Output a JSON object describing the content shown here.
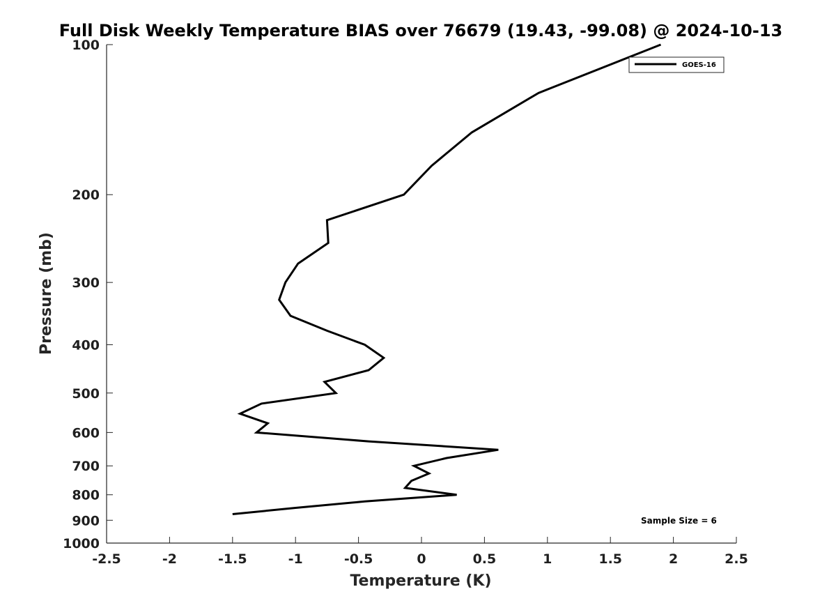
{
  "chart_data": {
    "type": "line",
    "title": "Full Disk Weekly Temperature BIAS over 76679 (19.43, -99.08) @ 2024-10-13",
    "xlabel": "Temperature (K)",
    "ylabel": "Pressure (mb)",
    "xlim": [
      -2.5,
      2.5
    ],
    "ylim": [
      100,
      1000
    ],
    "y_scale": "log",
    "y_reversed": true,
    "grid": false,
    "legend_position": "top-right",
    "x_ticks": [
      -2.5,
      -2,
      -1.5,
      -1,
      -0.5,
      0,
      0.5,
      1,
      1.5,
      2,
      2.5
    ],
    "x_tick_labels": [
      "-2.5",
      "-2",
      "-1.5",
      "-1",
      "-0.5",
      "0",
      "0.5",
      "1",
      "1.5",
      "2",
      "2.5"
    ],
    "y_ticks": [
      100,
      200,
      300,
      400,
      500,
      600,
      700,
      800,
      900,
      1000
    ],
    "y_tick_labels": [
      "100",
      "200",
      "300",
      "400",
      "500",
      "600",
      "700",
      "800",
      "900",
      "1000"
    ],
    "series": [
      {
        "name": "GOES-16",
        "color": "#000000",
        "points": [
          [
            1.9,
            100
          ],
          [
            0.93,
            125
          ],
          [
            0.4,
            150
          ],
          [
            0.08,
            175
          ],
          [
            -0.14,
            200
          ],
          [
            -0.75,
            225
          ],
          [
            -0.74,
            250
          ],
          [
            -0.98,
            275
          ],
          [
            -1.08,
            300
          ],
          [
            -1.13,
            325
          ],
          [
            -1.04,
            350
          ],
          [
            -0.75,
            375
          ],
          [
            -0.45,
            400
          ],
          [
            -0.3,
            425
          ],
          [
            -0.42,
            450
          ],
          [
            -0.77,
            475
          ],
          [
            -0.68,
            500
          ],
          [
            -1.27,
            525
          ],
          [
            -1.44,
            550
          ],
          [
            -1.22,
            575
          ],
          [
            -1.31,
            600
          ],
          [
            -0.42,
            625
          ],
          [
            0.61,
            650
          ],
          [
            0.2,
            675
          ],
          [
            -0.06,
            700
          ],
          [
            0.06,
            725
          ],
          [
            -0.08,
            750
          ],
          [
            -0.13,
            775
          ],
          [
            0.28,
            800
          ],
          [
            -0.45,
            825
          ],
          [
            -1.0,
            850
          ],
          [
            -1.5,
            875
          ]
        ]
      }
    ],
    "annotations": [
      "Sample Size = 6"
    ]
  }
}
